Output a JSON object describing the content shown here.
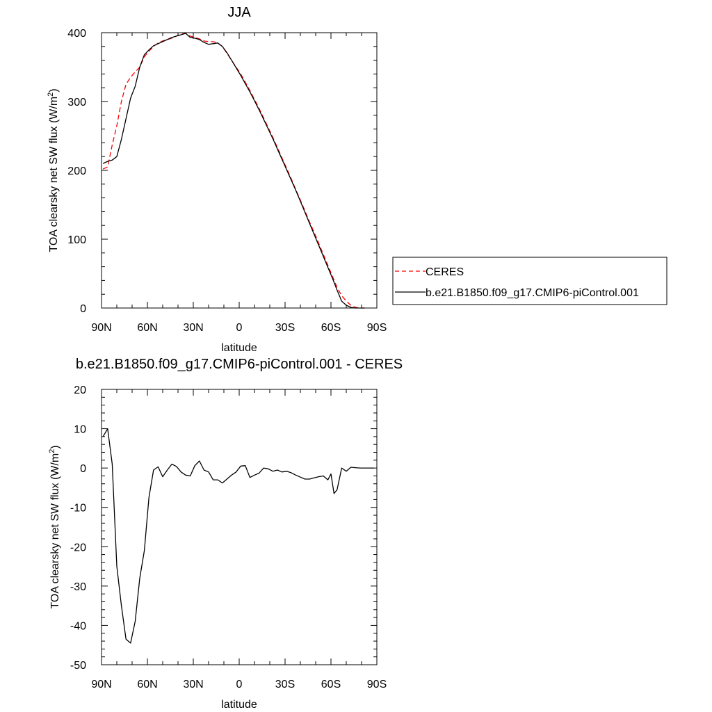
{
  "chart_data": [
    {
      "type": "line",
      "title": "JJA",
      "xlabel": "latitude",
      "ylabel": "TOA clearsky net SW flux (W/m",
      "ylabel_sup": "2",
      "ylabel_tail": ")",
      "xlim": [
        90,
        -90
      ],
      "ylim": [
        0,
        400
      ],
      "x_ticks": [
        90,
        60,
        30,
        0,
        -30,
        -60,
        -90
      ],
      "x_tick_labels": [
        "90N",
        "60N",
        "30N",
        "0",
        "30S",
        "60S",
        "90S"
      ],
      "y_ticks": [
        0,
        100,
        200,
        300,
        400
      ],
      "y_tick_labels": [
        "0",
        "100",
        "200",
        "300",
        "400"
      ],
      "grid": false,
      "legend_position": "right, outside plot",
      "series": [
        {
          "name": "CERES",
          "color": "#ff0000",
          "dash": "dashed",
          "x": [
            89,
            86,
            83,
            80,
            77,
            74,
            71,
            68,
            65,
            62,
            59,
            56,
            53,
            50,
            47,
            44,
            41,
            38,
            35,
            32,
            29,
            26,
            23,
            20,
            17,
            14,
            11,
            8,
            5,
            2,
            -1,
            -4,
            -7,
            -10,
            -13,
            -16,
            -19,
            -22,
            -25,
            -28,
            -31,
            -34,
            -37,
            -40,
            -43,
            -46,
            -49,
            -52,
            -55,
            -58,
            -61,
            -64,
            -67,
            -70,
            -73,
            -76,
            -79,
            -82
          ],
          "y": [
            202,
            205,
            237,
            265,
            300,
            325,
            335,
            343,
            350,
            365,
            373,
            380,
            385,
            388,
            390,
            392,
            395,
            398,
            399,
            395,
            393,
            391,
            388,
            387,
            387,
            385,
            380,
            370,
            360,
            350,
            340,
            328,
            316,
            303,
            290,
            276,
            262,
            248,
            233,
            218,
            203,
            188,
            172,
            157,
            141,
            125,
            110,
            94,
            78,
            62,
            46,
            30,
            18,
            10,
            4,
            1,
            0,
            0
          ]
        },
        {
          "name": "b.e21.B1850.f09_g17.CMIP6-piControl.001",
          "color": "#000000",
          "dash": "solid",
          "x": [
            89,
            86,
            83,
            80,
            77,
            74,
            71,
            68,
            65,
            62,
            59,
            56,
            53,
            50,
            47,
            44,
            41,
            38,
            35,
            32,
            29,
            26,
            23,
            20,
            17,
            14,
            11,
            8,
            5,
            2,
            -1,
            -4,
            -7,
            -10,
            -13,
            -16,
            -19,
            -22,
            -25,
            -28,
            -31,
            -34,
            -37,
            -40,
            -43,
            -46,
            -49,
            -52,
            -55,
            -58,
            -61,
            -64,
            -67,
            -70,
            -73,
            -76,
            -79,
            -82
          ],
          "y": [
            210,
            213,
            215,
            220,
            245,
            275,
            305,
            322,
            350,
            368,
            375,
            381,
            384,
            387,
            390,
            393,
            395,
            397,
            399,
            393,
            392,
            390,
            386,
            383,
            384,
            385,
            380,
            371,
            360,
            349,
            338,
            326,
            314,
            301,
            288,
            274,
            260,
            246,
            231,
            216,
            201,
            186,
            171,
            155,
            139,
            123,
            107,
            91,
            75,
            59,
            43,
            26,
            10,
            4,
            1,
            0,
            0,
            0
          ]
        }
      ]
    },
    {
      "type": "line",
      "title": "b.e21.B1850.f09_g17.CMIP6-piControl.001 - CERES",
      "xlabel": "latitude",
      "ylabel": "TOA clearsky net SW flux (W/m",
      "ylabel_sup": "2",
      "ylabel_tail": ")",
      "xlim": [
        90,
        -90
      ],
      "ylim": [
        -50,
        20
      ],
      "x_ticks": [
        90,
        60,
        30,
        0,
        -30,
        -60,
        -90
      ],
      "x_tick_labels": [
        "90N",
        "60N",
        "30N",
        "0",
        "30S",
        "60S",
        "90S"
      ],
      "y_ticks": [
        -50,
        -40,
        -30,
        -20,
        -10,
        0,
        10,
        20
      ],
      "y_tick_labels": [
        "-50",
        "-40",
        "-30",
        "-20",
        "-10",
        "0",
        "10",
        "20"
      ],
      "grid": false,
      "series": [
        {
          "color": "#000000",
          "dash": "solid",
          "x": [
            89,
            86,
            83,
            80,
            77,
            74,
            71,
            68,
            65,
            62,
            59,
            56,
            53,
            50,
            47,
            44,
            41,
            38,
            35,
            32,
            29,
            26,
            23,
            20,
            17,
            14,
            11,
            8,
            5,
            2,
            -1,
            -4,
            -7,
            -10,
            -13,
            -16,
            -19,
            -22,
            -25,
            -28,
            -31,
            -34,
            -37,
            -40,
            -43,
            -46,
            -49,
            -52,
            -55,
            -58,
            -60,
            -62,
            -64,
            -67,
            -70,
            -73,
            -76,
            -79,
            -82,
            -85,
            -88
          ],
          "y": [
            8,
            10,
            1,
            -25,
            -35,
            -43.5,
            -44.5,
            -39,
            -28,
            -21,
            -7.5,
            -0.5,
            0.3,
            -2.2,
            -0.5,
            1,
            0.4,
            -1,
            -1.8,
            -2,
            0.6,
            1.8,
            -0.5,
            -1,
            -3,
            -3,
            -3.8,
            -2.8,
            -1.8,
            -1,
            0.5,
            0.6,
            -2.4,
            -1.8,
            -1.3,
            0,
            -0.2,
            -0.8,
            -0.5,
            -1,
            -0.8,
            -1.2,
            -1.8,
            -2.3,
            -2.8,
            -2.8,
            -2.5,
            -2.2,
            -2,
            -3,
            -1.5,
            -6.5,
            -5.5,
            0,
            -0.8,
            0.2,
            0.1,
            0,
            0,
            0,
            0
          ]
        }
      ]
    }
  ]
}
